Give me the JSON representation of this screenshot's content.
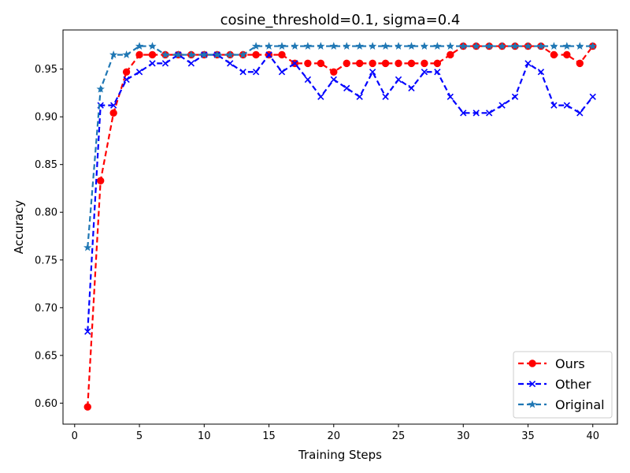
{
  "chart_data": {
    "type": "line",
    "title": "cosine_threshold=0.1, sigma=0.4",
    "xlabel": "Training Steps",
    "ylabel": "Accuracy",
    "xlim": [
      -0.9,
      41.9
    ],
    "ylim": [
      0.578,
      0.991
    ],
    "xticks": [
      0,
      5,
      10,
      15,
      20,
      25,
      30,
      35,
      40
    ],
    "yticks": [
      0.6,
      0.65,
      0.7,
      0.75,
      0.8,
      0.85,
      0.9,
      0.95
    ],
    "ytick_labels": [
      "0.60",
      "0.65",
      "0.70",
      "0.75",
      "0.80",
      "0.85",
      "0.90",
      "0.95"
    ],
    "grid": false,
    "legend_position": "lower-right",
    "x": [
      1,
      2,
      3,
      4,
      5,
      6,
      7,
      8,
      9,
      10,
      11,
      12,
      13,
      14,
      15,
      16,
      17,
      18,
      19,
      20,
      21,
      22,
      23,
      24,
      25,
      26,
      27,
      28,
      29,
      30,
      31,
      32,
      33,
      34,
      35,
      36,
      37,
      38,
      39,
      40
    ],
    "series": [
      {
        "name": "Ours",
        "color": "#ff0000",
        "marker": "circle",
        "values": [
          0.596,
          0.833,
          0.904,
          0.947,
          0.965,
          0.965,
          0.965,
          0.965,
          0.965,
          0.965,
          0.965,
          0.965,
          0.965,
          0.965,
          0.965,
          0.965,
          0.956,
          0.956,
          0.956,
          0.947,
          0.956,
          0.956,
          0.956,
          0.956,
          0.956,
          0.956,
          0.956,
          0.956,
          0.965,
          0.974,
          0.974,
          0.974,
          0.974,
          0.974,
          0.974,
          0.974,
          0.965,
          0.965,
          0.956,
          0.974
        ]
      },
      {
        "name": "Other",
        "color": "#0000ff",
        "marker": "x",
        "values": [
          0.675,
          0.912,
          0.912,
          0.939,
          0.947,
          0.956,
          0.956,
          0.965,
          0.956,
          0.965,
          0.965,
          0.956,
          0.947,
          0.947,
          0.965,
          0.947,
          0.956,
          0.939,
          0.921,
          0.939,
          0.93,
          0.921,
          0.947,
          0.921,
          0.939,
          0.93,
          0.947,
          0.947,
          0.921,
          0.904,
          0.904,
          0.904,
          0.912,
          0.921,
          0.956,
          0.947,
          0.912,
          0.912,
          0.904,
          0.921
        ]
      },
      {
        "name": "Original",
        "color": "#1f77b4",
        "marker": "star",
        "values": [
          0.763,
          0.929,
          0.965,
          0.965,
          0.974,
          0.974,
          0.965,
          0.965,
          0.965,
          0.965,
          0.965,
          0.965,
          0.965,
          0.974,
          0.974,
          0.974,
          0.974,
          0.974,
          0.974,
          0.974,
          0.974,
          0.974,
          0.974,
          0.974,
          0.974,
          0.974,
          0.974,
          0.974,
          0.974,
          0.974,
          0.974,
          0.974,
          0.974,
          0.974,
          0.974,
          0.974,
          0.974,
          0.974,
          0.974,
          0.974
        ]
      }
    ]
  }
}
